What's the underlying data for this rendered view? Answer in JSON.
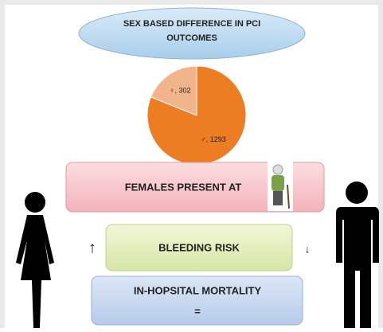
{
  "title": "SEX BASED DIFFERENCE IN PCI OUTCOMES",
  "chart_data": {
    "type": "pie",
    "values": [
      302,
      1293
    ],
    "value_labels": [
      "♀, 302",
      "♂, 1293"
    ],
    "colors": [
      "#f2b48a",
      "#ec7d22"
    ]
  },
  "boxes": [
    {
      "text": "FEMALES PRESENT AT"
    },
    {
      "text": "BLEEDING RISK",
      "left": "↑",
      "right": "↓"
    },
    {
      "text": "IN-HOPSITAL MORTALITY",
      "sub": "="
    }
  ]
}
